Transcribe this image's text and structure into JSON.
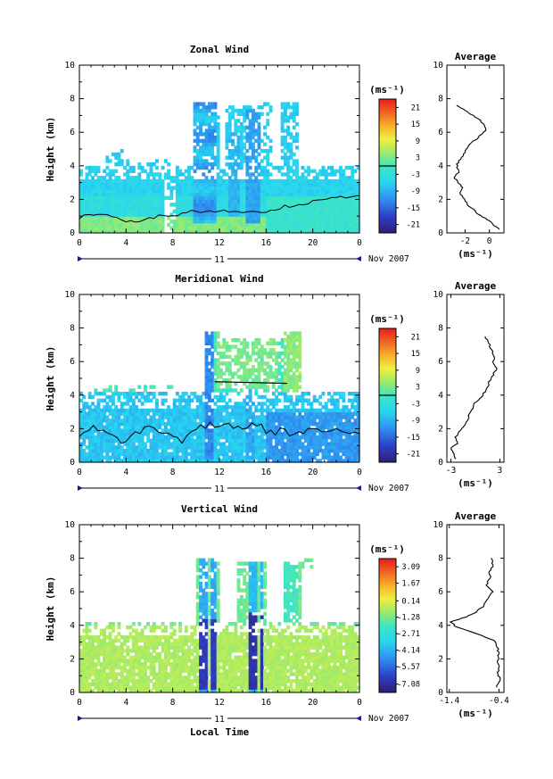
{
  "figure": {
    "xlabel": "Local Time",
    "date_label": "Nov 2007",
    "day_label": "11",
    "colorbar_unit": "(ms⁻¹)",
    "avg_title": "Average",
    "avg_unit": "(ms⁻¹)"
  },
  "chart_data": [
    {
      "type": "heatmap",
      "title": "Zonal Wind",
      "ylabel": "Height (km)",
      "xlim": [
        0,
        24
      ],
      "ylim": [
        0,
        10
      ],
      "x_ticks": [
        "0",
        "4",
        "8",
        "12",
        "16",
        "20",
        "0"
      ],
      "y_ticks": [
        "0",
        "2",
        "4",
        "6",
        "8",
        "10"
      ],
      "colorbar_ticks": [
        "21",
        "15",
        "9",
        "3",
        "-3",
        "-9",
        "-15",
        "-21"
      ],
      "colorbar_range": [
        -24,
        24
      ],
      "average_profile": {
        "xlim": [
          -3.5,
          1.2
        ],
        "x_ticks": [
          "-2",
          "0"
        ],
        "height_km": [
          0.2,
          0.5,
          0.8,
          1.1,
          1.5,
          1.9,
          2.3,
          2.7,
          3.0,
          3.3,
          3.7,
          4.1,
          4.5,
          4.9,
          5.3,
          5.7,
          6.1,
          6.4,
          6.7,
          7.0,
          7.3,
          7.6
        ],
        "value": [
          0.8,
          0.3,
          -0.2,
          -0.9,
          -1.5,
          -2.0,
          -2.4,
          -2.2,
          -2.6,
          -2.9,
          -2.5,
          -2.7,
          -2.3,
          -2.0,
          -1.6,
          -0.9,
          -0.3,
          -0.4,
          -0.7,
          -1.3,
          -2.0,
          -2.7
        ]
      }
    },
    {
      "type": "heatmap",
      "title": "Meridional Wind",
      "ylabel": "Height (km)",
      "xlim": [
        0,
        24
      ],
      "ylim": [
        0,
        10
      ],
      "x_ticks": [
        "0",
        "4",
        "8",
        "12",
        "16",
        "20",
        "0"
      ],
      "y_ticks": [
        "0",
        "2",
        "4",
        "6",
        "8",
        "10"
      ],
      "colorbar_ticks": [
        "21",
        "15",
        "9",
        "3",
        "-3",
        "-9",
        "-15",
        "-21"
      ],
      "colorbar_range": [
        -24,
        24
      ],
      "average_profile": {
        "xlim": [
          -3.5,
          3.5
        ],
        "x_ticks": [
          "-3",
          "3"
        ],
        "height_km": [
          0.2,
          0.5,
          0.8,
          1.1,
          1.5,
          1.9,
          2.3,
          2.7,
          3.1,
          3.5,
          3.9,
          4.3,
          4.7,
          5.1,
          5.5,
          5.9,
          6.3,
          6.7,
          7.1,
          7.5
        ],
        "value": [
          -2.4,
          -2.6,
          -3.0,
          -2.2,
          -2.5,
          -1.8,
          -1.2,
          -0.8,
          -0.5,
          -0.2,
          0.8,
          1.3,
          1.6,
          2.0,
          2.6,
          2.2,
          2.3,
          2.0,
          1.6,
          1.2
        ]
      }
    },
    {
      "type": "heatmap",
      "title": "Vertical Wind",
      "ylabel": "Height (km)",
      "xlim": [
        0,
        24
      ],
      "ylim": [
        0,
        10
      ],
      "x_ticks": [
        "0",
        "4",
        "8",
        "12",
        "16",
        "20",
        "0"
      ],
      "y_ticks": [
        "0",
        "2",
        "4",
        "6",
        "8",
        "10"
      ],
      "colorbar_ticks": [
        "3.09",
        "1.67",
        "0.14",
        "-1.28",
        "-2.71",
        "-4.14",
        "-5.57",
        "-7.08"
      ],
      "colorbar_range": [
        -7.8,
        3.8
      ],
      "average_profile": {
        "xlim": [
          -1.45,
          -0.3
        ],
        "x_ticks": [
          "-1.4",
          "-0.4"
        ],
        "height_km": [
          0.3,
          0.7,
          1.1,
          1.5,
          1.9,
          2.3,
          2.7,
          3.1,
          3.5,
          3.9,
          4.2,
          4.5,
          4.8,
          5.2,
          5.6,
          6.0,
          6.4,
          6.8,
          7.2,
          7.6,
          8.0
        ],
        "value": [
          -0.45,
          -0.38,
          -0.42,
          -0.4,
          -0.43,
          -0.4,
          -0.44,
          -0.5,
          -0.85,
          -1.25,
          -1.38,
          -1.05,
          -0.85,
          -0.7,
          -0.62,
          -0.52,
          -0.66,
          -0.58,
          -0.6,
          -0.52,
          -0.56
        ]
      }
    }
  ]
}
